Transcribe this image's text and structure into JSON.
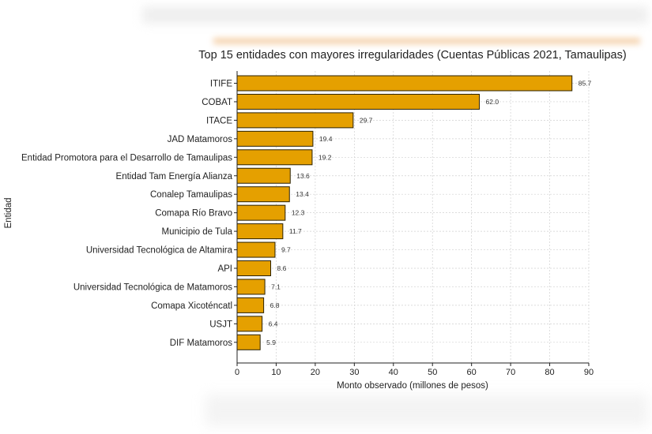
{
  "chart_data": {
    "type": "bar",
    "orientation": "horizontal",
    "title": "Top 15 entidades con mayores irregularidades (Cuentas Públicas 2021, Tamaulipas)",
    "xlabel": "Monto observado (millones de pesos)",
    "ylabel": "Entidad",
    "xlim": [
      0,
      90
    ],
    "xticks": [
      0,
      10,
      20,
      30,
      40,
      50,
      60,
      70,
      80,
      90
    ],
    "grid": true,
    "bar_color": "#E5A000",
    "edge_color": "#2b2100",
    "categories": [
      "ITIFE",
      "COBAT",
      "ITACE",
      "JAD Matamoros",
      "Entidad Promotora para el Desarrollo de Tamaulipas",
      "Entidad Tam Energía Alianza",
      "Conalep Tamaulipas",
      "Comapa Río Bravo",
      "Municipio de Tula",
      "Universidad Tecnológica de Altamira",
      "API",
      "Universidad Tecnológica de Matamoros",
      "Comapa Xicoténcatl",
      "USJT",
      "DIF Matamoros"
    ],
    "values": [
      85.7,
      62.0,
      29.7,
      19.4,
      19.2,
      13.6,
      13.4,
      12.3,
      11.7,
      9.7,
      8.6,
      7.1,
      6.8,
      6.4,
      5.9
    ]
  }
}
